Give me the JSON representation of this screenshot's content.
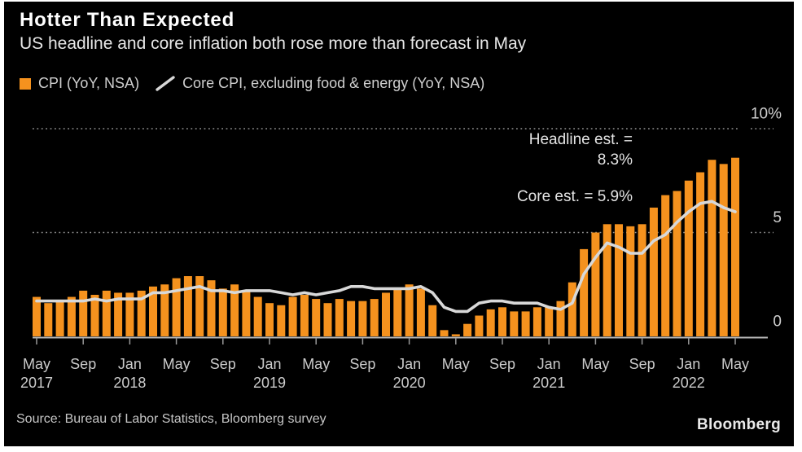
{
  "header": {
    "title": "Hotter Than Expected",
    "subtitle": "US headline and core inflation both rose more than forecast in May"
  },
  "footer": {
    "source": "Source: Bureau of Labor Statistics, Bloomberg survey",
    "brand": "Bloomberg"
  },
  "colors": {
    "background": "#000000",
    "page_margin": "#ffffff",
    "bar": "#F5921E",
    "core_line": "#D8D8D8",
    "title_text": "#FFFFFF",
    "subtitle_text": "#E8E8E8",
    "legend_text": "#CFCFCF",
    "axis_text": "#CBCBCB",
    "grid": "#909090",
    "axis_line": "#B8B8B8"
  },
  "chart_data": {
    "type": "bar",
    "title": "Hotter Than Expected",
    "subtitle": "US headline and core inflation both rose more than forecast in May",
    "ylabel": "",
    "xlabel": "",
    "ylim": [
      0,
      10
    ],
    "grid": "horizontal-dotted",
    "legend_position": "top-left",
    "x": [
      "May 2017",
      "Jun 2017",
      "Jul 2017",
      "Aug 2017",
      "Sep 2017",
      "Oct 2017",
      "Nov 2017",
      "Dec 2017",
      "Jan 2018",
      "Feb 2018",
      "Mar 2018",
      "Apr 2018",
      "May 2018",
      "Jun 2018",
      "Jul 2018",
      "Aug 2018",
      "Sep 2018",
      "Oct 2018",
      "Nov 2018",
      "Dec 2018",
      "Jan 2019",
      "Feb 2019",
      "Mar 2019",
      "Apr 2019",
      "May 2019",
      "Jun 2019",
      "Jul 2019",
      "Aug 2019",
      "Sep 2019",
      "Oct 2019",
      "Nov 2019",
      "Dec 2019",
      "Jan 2020",
      "Feb 2020",
      "Mar 2020",
      "Apr 2020",
      "May 2020",
      "Jun 2020",
      "Jul 2020",
      "Aug 2020",
      "Sep 2020",
      "Oct 2020",
      "Nov 2020",
      "Dec 2020",
      "Jan 2021",
      "Feb 2021",
      "Mar 2021",
      "Apr 2021",
      "May 2021",
      "Jun 2021",
      "Jul 2021",
      "Aug 2021",
      "Sep 2021",
      "Oct 2021",
      "Nov 2021",
      "Dec 2021",
      "Jan 2022",
      "Feb 2022",
      "Mar 2022",
      "Apr 2022",
      "May 2022"
    ],
    "series": [
      {
        "name": "CPI (YoY, NSA)",
        "type": "bar",
        "color": "#F5921E",
        "values": [
          1.9,
          1.6,
          1.7,
          1.9,
          2.2,
          2.0,
          2.2,
          2.1,
          2.1,
          2.2,
          2.4,
          2.5,
          2.8,
          2.9,
          2.9,
          2.7,
          2.3,
          2.5,
          2.2,
          1.9,
          1.6,
          1.5,
          1.9,
          2.0,
          1.8,
          1.6,
          1.8,
          1.7,
          1.7,
          1.8,
          2.1,
          2.3,
          2.5,
          2.3,
          1.5,
          0.3,
          0.1,
          0.6,
          1.0,
          1.3,
          1.4,
          1.2,
          1.2,
          1.4,
          1.4,
          1.7,
          2.6,
          4.2,
          5.0,
          5.4,
          5.4,
          5.3,
          5.4,
          6.2,
          6.8,
          7.0,
          7.5,
          7.9,
          8.5,
          8.3,
          8.6
        ]
      },
      {
        "name": "Core CPI, excluding food & energy (YoY, NSA)",
        "type": "line",
        "color": "#D8D8D8",
        "values": [
          1.7,
          1.7,
          1.7,
          1.7,
          1.7,
          1.8,
          1.7,
          1.8,
          1.8,
          1.8,
          2.1,
          2.1,
          2.2,
          2.3,
          2.4,
          2.2,
          2.2,
          2.1,
          2.2,
          2.2,
          2.2,
          2.1,
          2.0,
          2.1,
          2.0,
          2.1,
          2.2,
          2.4,
          2.4,
          2.3,
          2.3,
          2.3,
          2.3,
          2.4,
          2.1,
          1.4,
          1.2,
          1.2,
          1.6,
          1.7,
          1.7,
          1.6,
          1.6,
          1.6,
          1.4,
          1.3,
          1.6,
          3.0,
          3.8,
          4.5,
          4.3,
          4.0,
          4.0,
          4.6,
          4.9,
          5.5,
          6.0,
          6.4,
          6.5,
          6.2,
          6.0
        ]
      }
    ],
    "yticks": [
      {
        "value": 0,
        "label": "0",
        "style": "solid"
      },
      {
        "value": 5,
        "label": "5",
        "style": "dotted"
      },
      {
        "value": 10,
        "label": "10%",
        "style": "dotted"
      }
    ],
    "xticks": [
      {
        "index": 0,
        "month": "May",
        "year": "2017"
      },
      {
        "index": 4,
        "month": "Sep",
        "year": ""
      },
      {
        "index": 8,
        "month": "Jan",
        "year": "2018"
      },
      {
        "index": 12,
        "month": "May",
        "year": ""
      },
      {
        "index": 16,
        "month": "Sep",
        "year": ""
      },
      {
        "index": 20,
        "month": "Jan",
        "year": "2019"
      },
      {
        "index": 24,
        "month": "May",
        "year": ""
      },
      {
        "index": 28,
        "month": "Sep",
        "year": ""
      },
      {
        "index": 32,
        "month": "Jan",
        "year": "2020"
      },
      {
        "index": 36,
        "month": "May",
        "year": ""
      },
      {
        "index": 40,
        "month": "Sep",
        "year": ""
      },
      {
        "index": 44,
        "month": "Jan",
        "year": "2021"
      },
      {
        "index": 48,
        "month": "May",
        "year": ""
      },
      {
        "index": 52,
        "month": "Sep",
        "year": ""
      },
      {
        "index": 56,
        "month": "Jan",
        "year": "2022"
      },
      {
        "index": 60,
        "month": "May",
        "year": ""
      }
    ],
    "annotations": [
      {
        "lines": [
          "Headline est. =",
          "8.3%"
        ],
        "align": "right"
      },
      {
        "lines": [
          "Core est. = 5.9%"
        ],
        "align": "right"
      }
    ]
  }
}
